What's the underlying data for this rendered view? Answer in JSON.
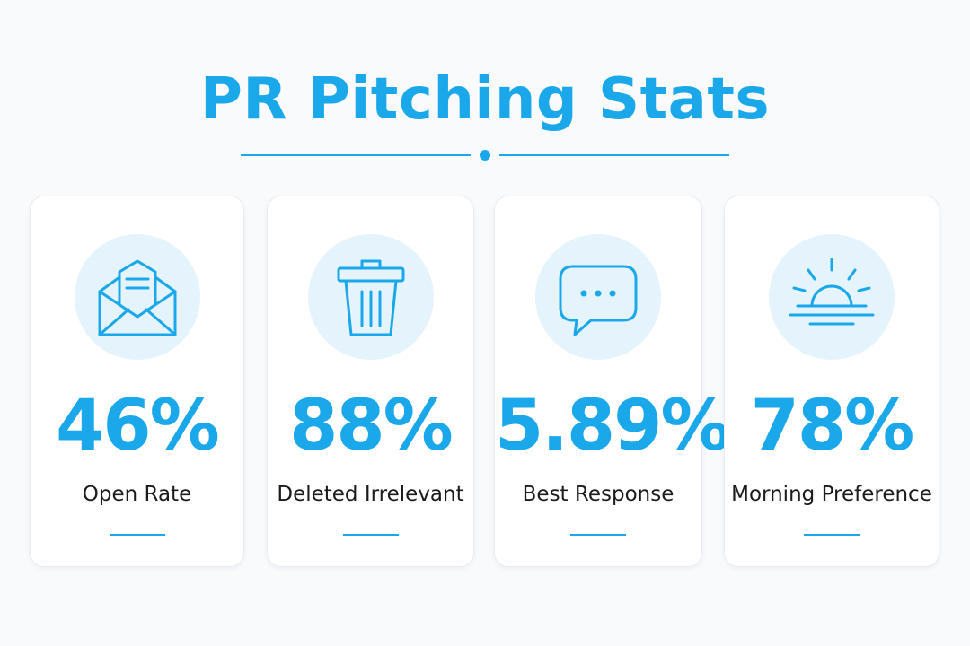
{
  "title": "PR Pitching Stats",
  "colors": {
    "accent": "#1aa8ea",
    "icon_bg": "#e4f3fc",
    "card_bg": "#ffffff",
    "page_bg": "#f8fafc",
    "label_text": "#1b1b1b"
  },
  "stats": [
    {
      "icon": "envelope-icon",
      "value": "46%",
      "label": "Open Rate"
    },
    {
      "icon": "trash-icon",
      "value": "88%",
      "label": "Deleted Irrelevant"
    },
    {
      "icon": "chat-bubble-icon",
      "value": "5.89%",
      "label": "Best Response"
    },
    {
      "icon": "sunrise-icon",
      "value": "78%",
      "label": "Morning Preference"
    }
  ]
}
